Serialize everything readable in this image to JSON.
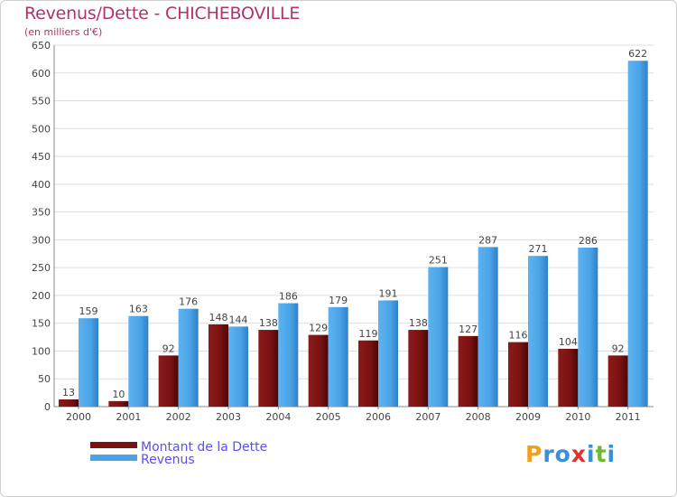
{
  "chart_data": {
    "type": "bar",
    "title": "Revenus/Dette - CHICHEBOVILLE",
    "subtitle": "(en milliers d'€)",
    "xlabel": "",
    "ylabel": "",
    "ylim": [
      0,
      650
    ],
    "yticks": [
      0,
      50,
      100,
      150,
      200,
      250,
      300,
      350,
      400,
      450,
      500,
      550,
      600,
      650
    ],
    "grid": true,
    "legend_position": "bottom-left",
    "categories": [
      "2000",
      "2001",
      "2002",
      "2003",
      "2004",
      "2005",
      "2006",
      "2007",
      "2008",
      "2009",
      "2010",
      "2011"
    ],
    "series": [
      {
        "name": "Montant de la Dette",
        "color": "#7a1212",
        "values": [
          13,
          10,
          92,
          148,
          138,
          129,
          119,
          138,
          127,
          116,
          104,
          92
        ]
      },
      {
        "name": "Revenus",
        "color": "#4aa3e6",
        "values": [
          159,
          163,
          176,
          144,
          186,
          179,
          191,
          251,
          287,
          271,
          286,
          622
        ]
      }
    ]
  },
  "logo": {
    "text": "Proxiti",
    "letters": [
      "P",
      "r",
      "o",
      "x",
      "i",
      "t",
      "i"
    ],
    "colors": [
      "#f0a020",
      "#3a8fd8",
      "#3a8fd8",
      "#e03030",
      "#3a8fd8",
      "#70b830",
      "#3a8fd8"
    ]
  }
}
